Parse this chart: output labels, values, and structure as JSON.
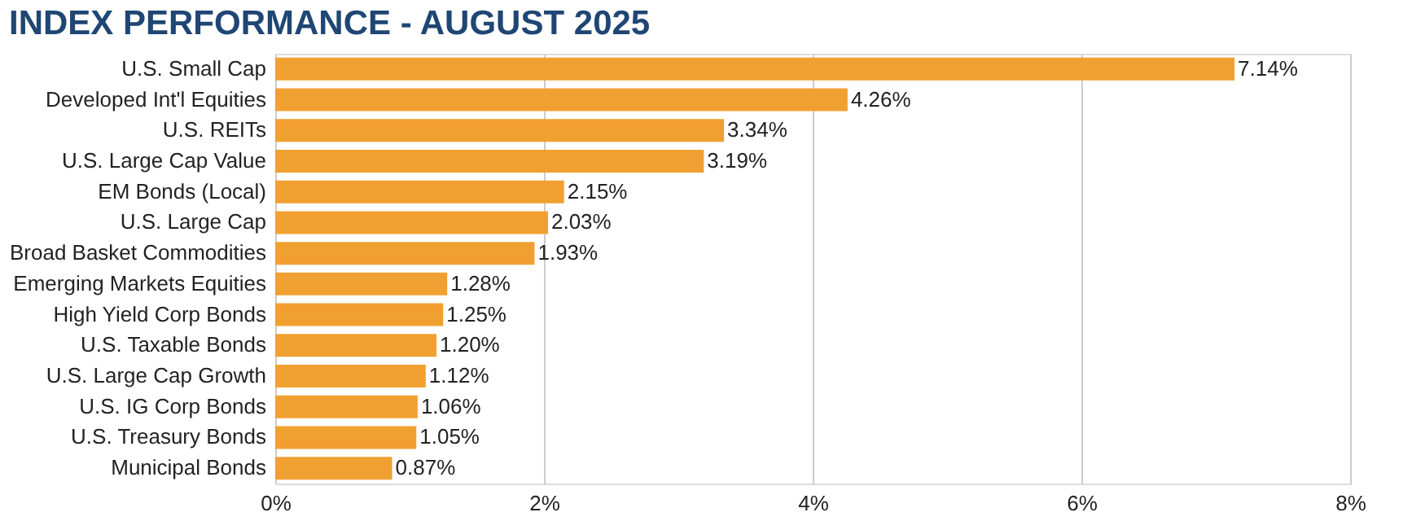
{
  "chart_data": {
    "type": "bar",
    "orientation": "horizontal",
    "title": "INDEX PERFORMANCE - AUGUST 2025",
    "categories": [
      "U.S. Small Cap",
      "Developed Int'l Equities",
      "U.S. REITs",
      "U.S. Large Cap Value",
      "EM Bonds (Local)",
      "U.S. Large Cap",
      "Broad Basket Commodities",
      "Emerging Markets Equities",
      "High Yield Corp Bonds",
      "U.S. Taxable Bonds",
      "U.S. Large Cap Growth",
      "U.S. IG Corp Bonds",
      "U.S. Treasury Bonds",
      "Municipal Bonds"
    ],
    "values": [
      7.14,
      4.26,
      3.34,
      3.19,
      2.15,
      2.03,
      1.93,
      1.28,
      1.25,
      1.2,
      1.12,
      1.06,
      1.05,
      0.87
    ],
    "value_labels": [
      "7.14%",
      "4.26%",
      "3.34%",
      "3.19%",
      "2.15%",
      "2.03%",
      "1.93%",
      "1.28%",
      "1.25%",
      "1.20%",
      "1.12%",
      "1.06%",
      "1.05%",
      "0.87%"
    ],
    "color": "#f0a031",
    "xlim": [
      0,
      8
    ],
    "xticks": [
      {
        "value": 0,
        "label": "0%"
      },
      {
        "value": 2,
        "label": "2%"
      },
      {
        "value": 4,
        "label": "4%"
      },
      {
        "value": 6,
        "label": "6%"
      },
      {
        "value": 8,
        "label": "8%"
      }
    ],
    "grid": "x"
  }
}
